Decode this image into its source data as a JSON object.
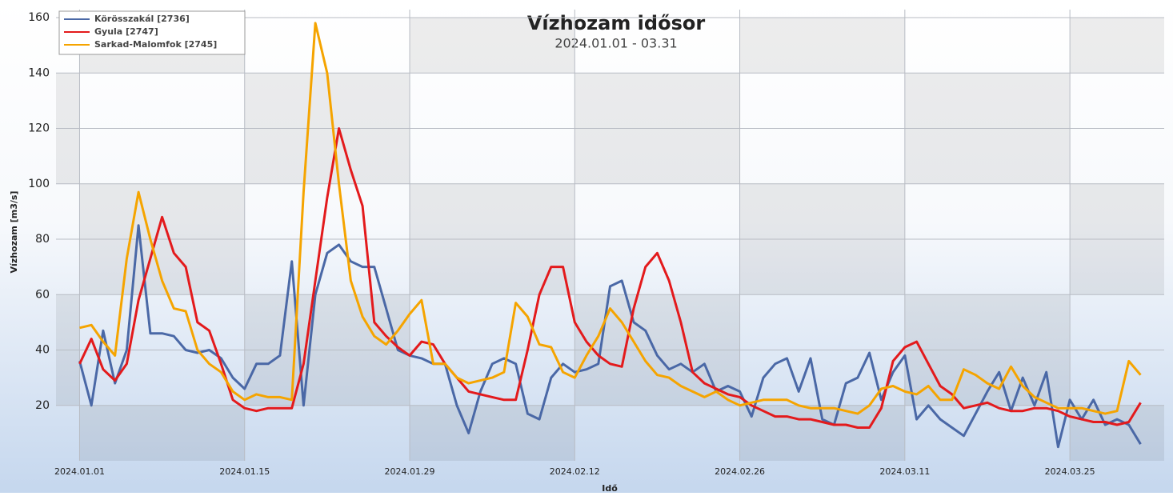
{
  "chart_data": {
    "type": "line",
    "title": "Vízhozam idősor",
    "subtitle": "2024.01.01 - 03.31",
    "y_label": "Vízhozam [m3/s]",
    "x_label": "Idő",
    "x": [
      "2024.01.01",
      "2024.01.02",
      "2024.01.03",
      "2024.01.04",
      "2024.01.05",
      "2024.01.06",
      "2024.01.07",
      "2024.01.08",
      "2024.01.09",
      "2024.01.10",
      "2024.01.11",
      "2024.01.12",
      "2024.01.13",
      "2024.01.14",
      "2024.01.15",
      "2024.01.16",
      "2024.01.17",
      "2024.01.18",
      "2024.01.19",
      "2024.01.20",
      "2024.01.21",
      "2024.01.22",
      "2024.01.23",
      "2024.01.24",
      "2024.01.25",
      "2024.01.26",
      "2024.01.27",
      "2024.01.28",
      "2024.01.29",
      "2024.01.30",
      "2024.01.31",
      "2024.02.01",
      "2024.02.02",
      "2024.02.03",
      "2024.02.04",
      "2024.02.05",
      "2024.02.06",
      "2024.02.07",
      "2024.02.08",
      "2024.02.09",
      "2024.02.10",
      "2024.02.11",
      "2024.02.12",
      "2024.02.13",
      "2024.02.14",
      "2024.02.15",
      "2024.02.16",
      "2024.02.17",
      "2024.02.18",
      "2024.02.19",
      "2024.02.20",
      "2024.02.21",
      "2024.02.22",
      "2024.02.23",
      "2024.02.24",
      "2024.02.25",
      "2024.02.26",
      "2024.02.27",
      "2024.02.28",
      "2024.02.29",
      "2024.03.01",
      "2024.03.02",
      "2024.03.03",
      "2024.03.04",
      "2024.03.05",
      "2024.03.06",
      "2024.03.07",
      "2024.03.08",
      "2024.03.09",
      "2024.03.10",
      "2024.03.11",
      "2024.03.12",
      "2024.03.13",
      "2024.03.14",
      "2024.03.15",
      "2024.03.16",
      "2024.03.17",
      "2024.03.18",
      "2024.03.19",
      "2024.03.20",
      "2024.03.21",
      "2024.03.22",
      "2024.03.23",
      "2024.03.24",
      "2024.03.25",
      "2024.03.26",
      "2024.03.27",
      "2024.03.28",
      "2024.03.29",
      "2024.03.30",
      "2024.03.31"
    ],
    "series": [
      {
        "name": "Körösszakál [2736]",
        "color": "#4a68a6",
        "values": [
          36,
          20,
          47,
          28,
          40,
          85,
          46,
          46,
          45,
          40,
          39,
          40,
          37,
          30,
          26,
          35,
          35,
          38,
          72,
          20,
          60,
          75,
          78,
          72,
          70,
          70,
          55,
          40,
          38,
          37,
          35,
          35,
          20,
          10,
          25,
          35,
          37,
          35,
          17,
          15,
          30,
          35,
          32,
          33,
          35,
          63,
          65,
          50,
          47,
          38,
          33,
          35,
          32,
          35,
          25,
          27,
          25,
          16,
          30,
          35,
          37,
          25,
          37,
          15,
          13,
          28,
          30,
          39,
          22,
          32,
          38,
          15,
          20,
          15,
          12,
          9,
          17,
          25,
          32,
          18,
          30,
          20,
          32,
          5,
          22,
          15,
          22,
          13,
          15,
          13,
          6
        ]
      },
      {
        "name": "Gyula [2747]",
        "color": "#e31a1c",
        "values": [
          35,
          44,
          33,
          29,
          35,
          58,
          73,
          88,
          75,
          70,
          50,
          47,
          35,
          22,
          19,
          18,
          19,
          19,
          19,
          35,
          65,
          95,
          120,
          105,
          92,
          50,
          45,
          41,
          38,
          43,
          42,
          35,
          30,
          25,
          24,
          23,
          22,
          22,
          40,
          60,
          70,
          70,
          50,
          43,
          38,
          35,
          34,
          55,
          70,
          75,
          65,
          50,
          32,
          28,
          26,
          24,
          23,
          20,
          18,
          16,
          16,
          15,
          15,
          14,
          13,
          13,
          12,
          12,
          19,
          36,
          41,
          43,
          35,
          27,
          24,
          19,
          20,
          21,
          19,
          18,
          18,
          19,
          19,
          18,
          16,
          15,
          14,
          14,
          13,
          14,
          21
        ]
      },
      {
        "name": "Sarkad-Malomfok [2745]",
        "color": "#f5a400",
        "values": [
          48,
          49,
          43,
          38,
          73,
          97,
          80,
          65,
          55,
          54,
          40,
          35,
          32,
          25,
          22,
          24,
          23,
          23,
          22,
          97,
          158,
          140,
          100,
          65,
          52,
          45,
          42,
          47,
          53,
          58,
          35,
          35,
          30,
          28,
          29,
          30,
          32,
          57,
          52,
          42,
          41,
          32,
          30,
          38,
          45,
          55,
          50,
          43,
          36,
          31,
          30,
          27,
          25,
          23,
          25,
          22,
          20,
          21,
          22,
          22,
          22,
          20,
          19,
          19,
          19,
          18,
          17,
          20,
          26,
          27,
          25,
          24,
          27,
          22,
          22,
          33,
          31,
          28,
          26,
          34,
          27,
          23,
          21,
          19,
          19,
          19,
          18,
          17,
          18,
          36,
          31
        ]
      }
    ],
    "xlim": [
      "2023.12.30",
      "2024.04.02"
    ],
    "xticks": [
      "2024.01.01",
      "2024.01.15",
      "2024.01.29",
      "2024.02.12",
      "2024.02.26",
      "2024.03.11",
      "2024.03.25"
    ],
    "ylim": [
      0,
      160
    ],
    "yticks": [
      20,
      40,
      60,
      80,
      100,
      120,
      140,
      160
    ],
    "grid": true,
    "legend": "upper left"
  }
}
